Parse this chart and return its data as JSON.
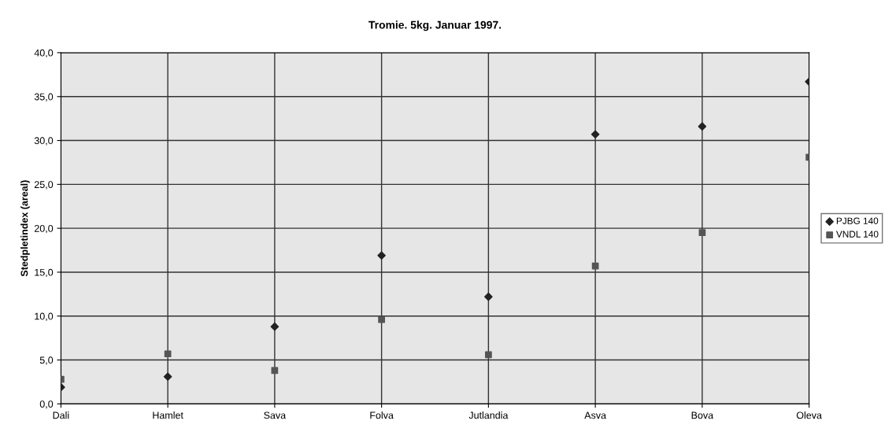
{
  "chart_data": {
    "type": "scatter",
    "title": "Tromie. 5kg. Januar 1997.",
    "ylabel": "Stedpletindex (areal)",
    "categories": [
      "Dali",
      "Hamlet",
      "Sava",
      "Folva",
      "Jutlandia",
      "Asva",
      "Bova",
      "Oleva"
    ],
    "series": [
      {
        "name": "PJBG 140",
        "color": "#222222",
        "marker": "diamond",
        "values": [
          1.9,
          3.1,
          8.8,
          16.9,
          12.2,
          30.7,
          31.6,
          36.7
        ]
      },
      {
        "name": "VNDL 140",
        "color": "#555555",
        "marker": "square",
        "values": [
          2.8,
          5.7,
          3.8,
          9.6,
          5.6,
          15.7,
          19.5,
          28.1
        ]
      }
    ],
    "ylim": [
      0,
      40
    ],
    "yticks": [
      {
        "value": 0,
        "label": "0,0"
      },
      {
        "value": 5,
        "label": "5,0"
      },
      {
        "value": 10,
        "label": "10,0"
      },
      {
        "value": 15,
        "label": "15,0"
      },
      {
        "value": 20,
        "label": "20,0"
      },
      {
        "value": 25,
        "label": "25,0"
      },
      {
        "value": 30,
        "label": "30,0"
      },
      {
        "value": 35,
        "label": "35,0"
      },
      {
        "value": 40,
        "label": "40,0"
      }
    ],
    "grid": true,
    "legend": "right"
  }
}
